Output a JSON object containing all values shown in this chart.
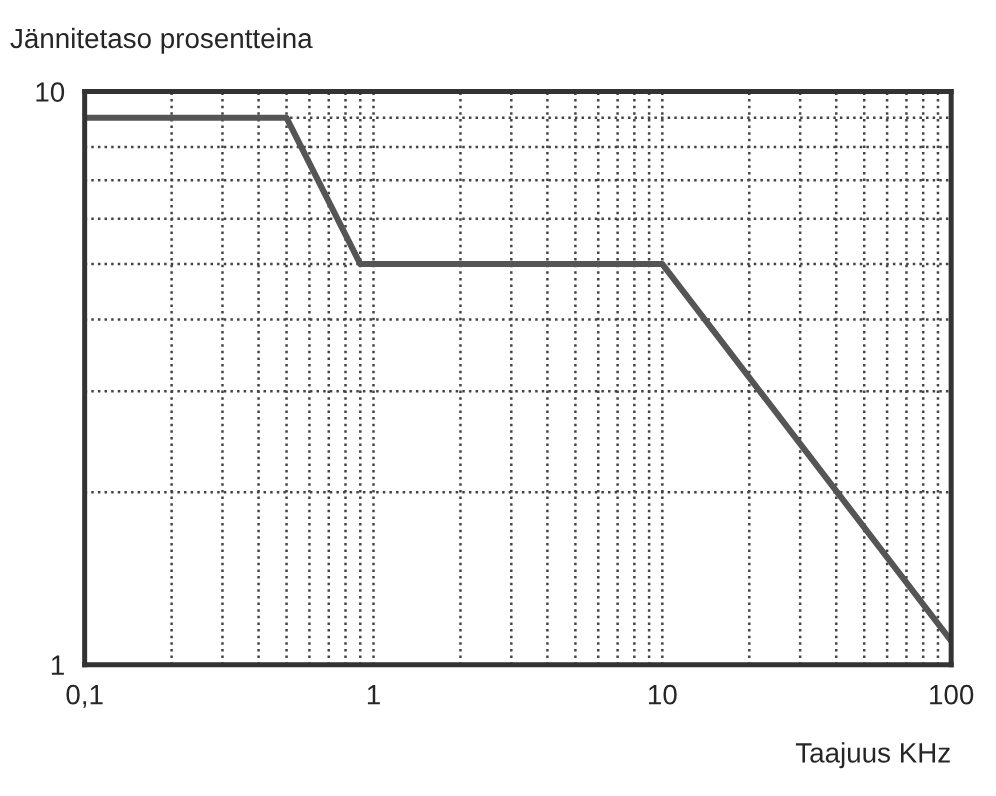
{
  "chart_data": {
    "type": "line",
    "ylabel": "Jännitetaso prosentteina",
    "xlabel": "Taajuus KHz",
    "x": [
      0.1,
      0.5,
      0.9,
      10,
      100
    ],
    "series": [
      {
        "color": "#555555",
        "values": [
          9,
          9,
          5,
          5,
          1.1
        ]
      }
    ],
    "log": "xy",
    "xlim": [
      0.1,
      100
    ],
    "ylim": [
      1,
      10
    ],
    "xticks": [
      {
        "value": 0.1,
        "label": "0,1"
      },
      1,
      10,
      100
    ],
    "yticks": [
      1,
      10
    ],
    "grid": true,
    "line_style": "solid",
    "marker": "none"
  }
}
